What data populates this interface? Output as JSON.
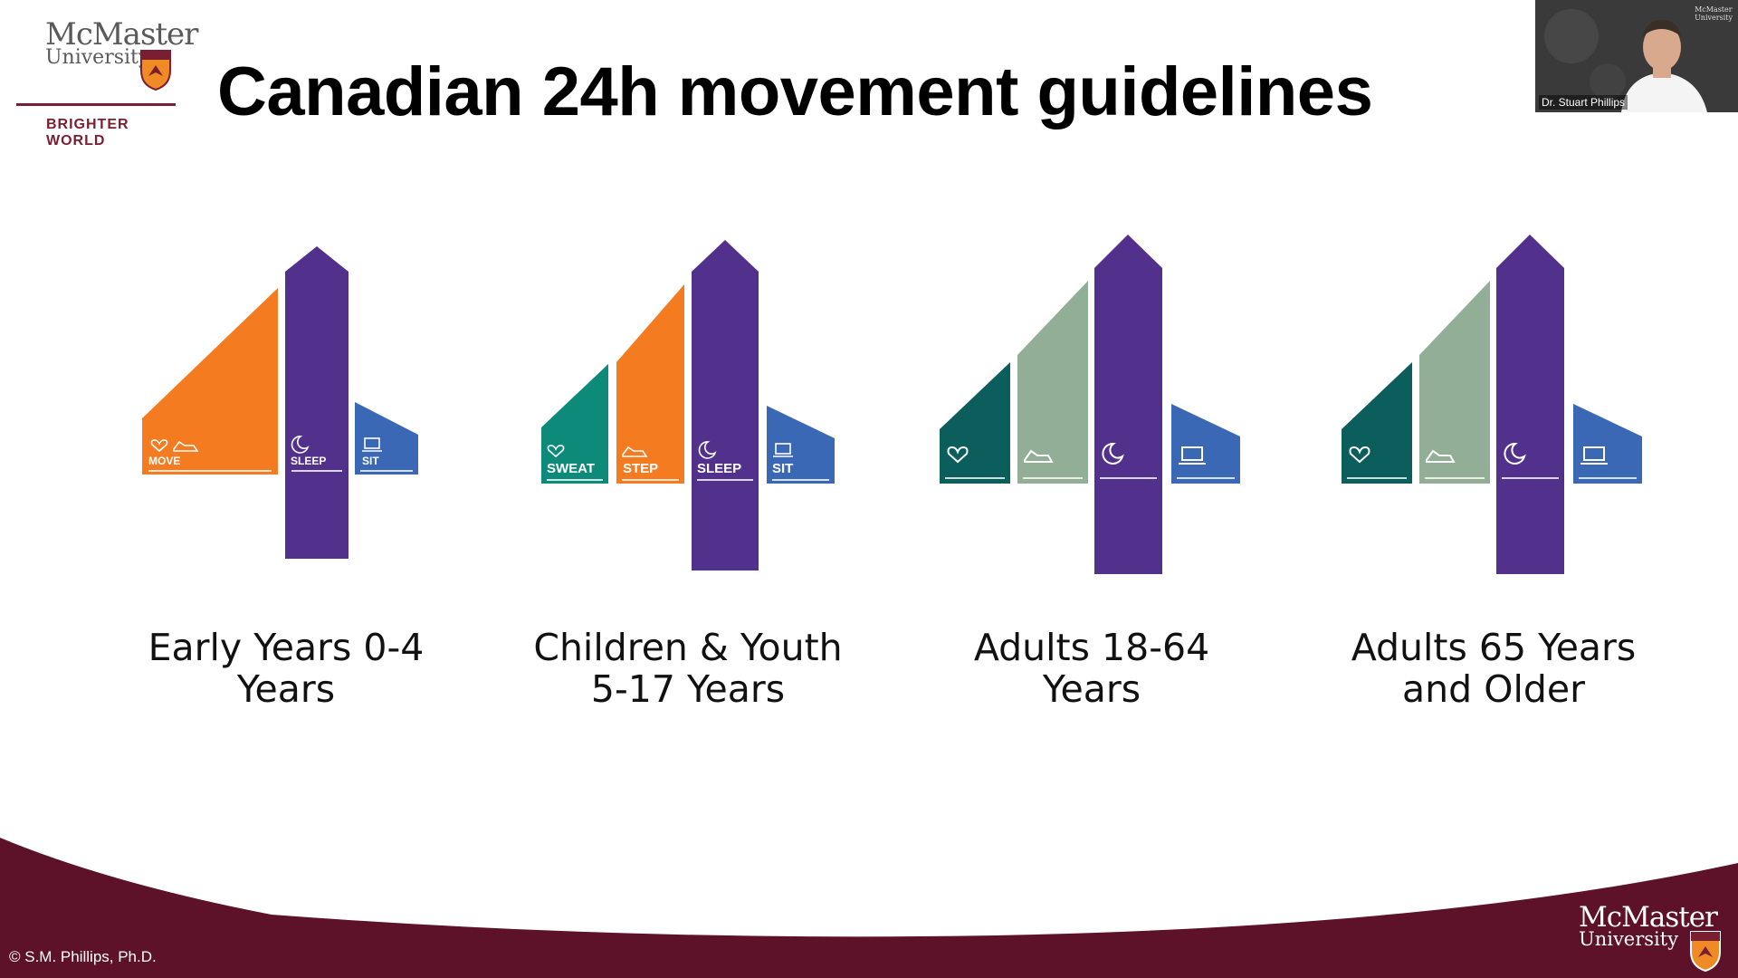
{
  "slide": {
    "title": "Canadian 24h movement guidelines",
    "copyright": "© S.M. Phillips, Ph.D."
  },
  "logo": {
    "name_line1": "McMaster",
    "name_line2": "University",
    "tagline": "BRIGHTER WORLD"
  },
  "video": {
    "participant_name": "Dr. Stuart Phillips"
  },
  "colors": {
    "orange": "#f47b20",
    "purple": "#52318d",
    "blue": "#3b68b4",
    "teal": "#0e8a7a",
    "dark_teal": "#0b5e5c",
    "sage": "#93ae96",
    "maroon": "#5d1229"
  },
  "guidelines": [
    {
      "caption_line1": "Early Years 0-4",
      "caption_line2": "Years",
      "bars": [
        {
          "label": "MOVE",
          "icon": "shoe-icon"
        },
        {
          "label": "SLEEP",
          "icon": "moon-icon"
        },
        {
          "label": "SIT",
          "icon": "laptop-icon"
        }
      ]
    },
    {
      "caption_line1": "Children & Youth",
      "caption_line2": "5-17 Years",
      "bars": [
        {
          "label": "SWEAT",
          "icon": "heart-icon"
        },
        {
          "label": "STEP",
          "icon": "shoe-icon"
        },
        {
          "label": "SLEEP",
          "icon": "moon-icon"
        },
        {
          "label": "SIT",
          "icon": "laptop-icon"
        }
      ]
    },
    {
      "caption_line1": "Adults 18-64",
      "caption_line2": "Years",
      "bars": [
        {
          "icon": "heart-icon"
        },
        {
          "icon": "shoe-icon"
        },
        {
          "icon": "moon-icon"
        },
        {
          "icon": "laptop-icon"
        }
      ]
    },
    {
      "caption_line1": "Adults 65 Years",
      "caption_line2": "and Older",
      "bars": [
        {
          "icon": "heart-icon"
        },
        {
          "icon": "shoe-icon"
        },
        {
          "icon": "moon-icon"
        },
        {
          "icon": "laptop-icon"
        }
      ]
    }
  ]
}
